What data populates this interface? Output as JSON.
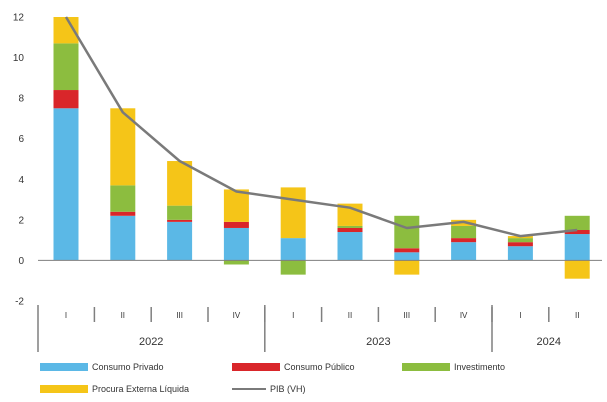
{
  "chart_data": {
    "type": "bar",
    "stacked": true,
    "categories": [
      "I",
      "II",
      "III",
      "IV",
      "I",
      "II",
      "III",
      "IV",
      "I",
      "II"
    ],
    "year_groups": [
      {
        "label": "2022",
        "count": 4
      },
      {
        "label": "2023",
        "count": 4
      },
      {
        "label": "2024",
        "count": 2
      }
    ],
    "ylim": [
      -2,
      12
    ],
    "yticks": [
      12,
      10,
      8,
      6,
      4,
      2,
      0,
      -2
    ],
    "grid": false,
    "legend_position": "bottom",
    "series": [
      {
        "name": "Consumo Privado",
        "color": "#5bb8e6",
        "kind": "bar",
        "values": [
          7.5,
          2.2,
          1.9,
          1.6,
          1.1,
          1.4,
          0.4,
          0.9,
          0.7,
          1.3
        ]
      },
      {
        "name": "Consumo Público",
        "color": "#d9262a",
        "kind": "bar",
        "values": [
          0.9,
          0.2,
          0.1,
          0.3,
          0.0,
          0.2,
          0.2,
          0.2,
          0.2,
          0.2
        ]
      },
      {
        "name": "Investimento",
        "color": "#8cbd3f",
        "kind": "bar",
        "values": [
          2.3,
          1.3,
          0.7,
          -0.2,
          -0.7,
          0.1,
          1.6,
          0.6,
          0.2,
          0.7
        ]
      },
      {
        "name": "Procura Externa Líquida",
        "color": "#f5c518",
        "kind": "bar",
        "values": [
          1.3,
          3.8,
          2.2,
          1.6,
          2.5,
          1.1,
          -0.7,
          0.3,
          0.1,
          -0.9
        ]
      },
      {
        "name": "PIB (VH)",
        "color": "#7a7a7a",
        "kind": "line",
        "values": [
          12.0,
          7.3,
          4.9,
          3.4,
          3.0,
          2.6,
          1.6,
          1.9,
          1.2,
          1.5
        ]
      }
    ],
    "legend": [
      {
        "name": "Consumo Privado",
        "color": "#5bb8e6",
        "kind": "bar"
      },
      {
        "name": "Consumo Público",
        "color": "#d9262a",
        "kind": "bar"
      },
      {
        "name": "Investimento",
        "color": "#8cbd3f",
        "kind": "bar"
      },
      {
        "name": "Procura Externa Líquida",
        "color": "#f5c518",
        "kind": "bar"
      },
      {
        "name": "PIB (VH)",
        "color": "#7a7a7a",
        "kind": "line"
      }
    ]
  }
}
